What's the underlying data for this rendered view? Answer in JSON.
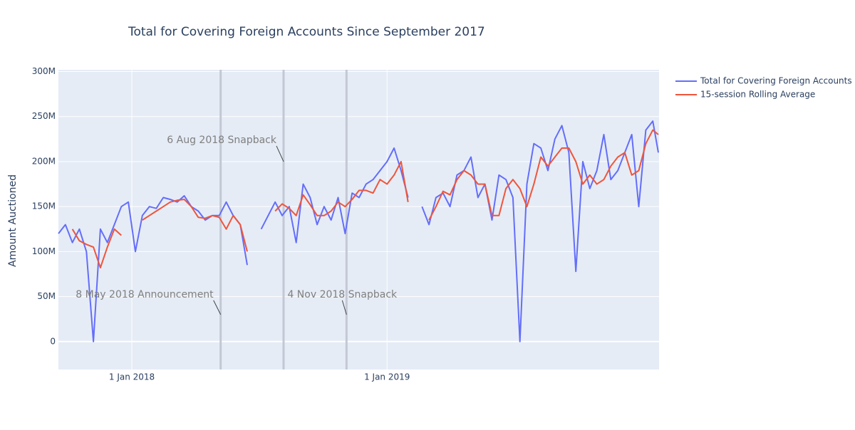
{
  "chart_data": {
    "type": "line",
    "title": "Total for Covering Foreign Accounts Since September 2017",
    "y_label": "Amount Auctioned",
    "x": [
      "2017-09-18",
      "2017-09-28",
      "2017-10-08",
      "2017-10-18",
      "2017-10-28",
      "2017-11-07",
      "2017-11-17",
      "2017-11-27",
      "2017-12-07",
      "2017-12-17",
      "2017-12-27",
      "2018-01-06",
      "2018-01-16",
      "2018-01-26",
      "2018-02-05",
      "2018-02-15",
      "2018-02-25",
      "2018-03-07",
      "2018-03-17",
      "2018-03-27",
      "2018-04-06",
      "2018-04-16",
      "2018-04-26",
      "2018-05-06",
      "2018-05-16",
      "2018-05-26",
      "2018-06-05",
      "2018-06-15",
      "2018-06-25",
      "2018-07-05",
      "2018-07-15",
      "2018-07-25",
      "2018-08-04",
      "2018-08-14",
      "2018-08-24",
      "2018-09-03",
      "2018-09-13",
      "2018-09-23",
      "2018-10-03",
      "2018-10-13",
      "2018-10-23",
      "2018-11-02",
      "2018-11-12",
      "2018-11-22",
      "2018-12-02",
      "2018-12-12",
      "2018-12-22",
      "2019-01-01",
      "2019-01-11",
      "2019-01-21",
      "2019-01-31",
      "2019-02-10",
      "2019-02-20",
      "2019-03-02",
      "2019-03-12",
      "2019-03-22",
      "2019-04-01",
      "2019-04-11",
      "2019-04-21",
      "2019-05-01",
      "2019-05-11",
      "2019-05-21",
      "2019-05-31",
      "2019-06-10",
      "2019-06-20",
      "2019-06-30",
      "2019-07-10",
      "2019-07-20",
      "2019-07-30",
      "2019-08-09",
      "2019-08-19",
      "2019-08-29",
      "2019-09-08",
      "2019-09-18",
      "2019-09-28",
      "2019-10-08",
      "2019-10-18",
      "2019-10-28",
      "2019-11-07",
      "2019-11-17",
      "2019-11-27",
      "2019-12-07",
      "2019-12-17",
      "2019-12-27",
      "2020-01-06",
      "2020-01-16",
      "2020-01-24"
    ],
    "series": [
      {
        "name": "Total for Covering Foreign Accounts",
        "color": "#636efa",
        "values": [
          120000000,
          130000000,
          110000000,
          125000000,
          100000000,
          0,
          125000000,
          110000000,
          130000000,
          150000000,
          155000000,
          100000000,
          140000000,
          150000000,
          148000000,
          160000000,
          158000000,
          155000000,
          162000000,
          150000000,
          145000000,
          135000000,
          140000000,
          140000000,
          155000000,
          140000000,
          130000000,
          85000000,
          null,
          125000000,
          140000000,
          155000000,
          140000000,
          150000000,
          110000000,
          175000000,
          160000000,
          130000000,
          150000000,
          135000000,
          160000000,
          120000000,
          165000000,
          160000000,
          175000000,
          180000000,
          190000000,
          200000000,
          215000000,
          190000000,
          160000000,
          null,
          150000000,
          130000000,
          160000000,
          165000000,
          150000000,
          185000000,
          190000000,
          205000000,
          160000000,
          175000000,
          135000000,
          185000000,
          180000000,
          160000000,
          0,
          175000000,
          220000000,
          215000000,
          190000000,
          225000000,
          240000000,
          210000000,
          78000000,
          200000000,
          170000000,
          190000000,
          230000000,
          180000000,
          190000000,
          210000000,
          230000000,
          150000000,
          235000000,
          245000000,
          210000000
        ]
      },
      {
        "name": "15-session Rolling Average",
        "color": "#ef553b",
        "values": [
          null,
          null,
          125000000,
          112000000,
          108000000,
          105000000,
          82000000,
          105000000,
          125000000,
          118000000,
          null,
          null,
          135000000,
          140000000,
          145000000,
          150000000,
          155000000,
          157000000,
          158000000,
          150000000,
          138000000,
          137000000,
          140000000,
          138000000,
          125000000,
          140000000,
          130000000,
          100000000,
          null,
          null,
          null,
          145000000,
          153000000,
          148000000,
          140000000,
          163000000,
          152000000,
          140000000,
          140000000,
          145000000,
          155000000,
          150000000,
          158000000,
          168000000,
          168000000,
          165000000,
          180000000,
          175000000,
          185000000,
          200000000,
          155000000,
          null,
          null,
          135000000,
          150000000,
          167000000,
          163000000,
          180000000,
          190000000,
          185000000,
          175000000,
          175000000,
          140000000,
          140000000,
          170000000,
          180000000,
          170000000,
          150000000,
          175000000,
          205000000,
          195000000,
          205000000,
          215000000,
          215000000,
          200000000,
          175000000,
          185000000,
          175000000,
          180000000,
          195000000,
          205000000,
          210000000,
          185000000,
          190000000,
          220000000,
          235000000,
          230000000
        ]
      }
    ],
    "xlim": [
      "2017-09-18",
      "2020-01-25"
    ],
    "xticks": [
      {
        "value": "2018-01-01",
        "label": "1 Jan 2018"
      },
      {
        "value": "2019-01-01",
        "label": "1 Jan 2019"
      }
    ],
    "ylim": [
      -31000000,
      302000000
    ],
    "yticks": [
      0,
      {
        "value": 50000000,
        "label": "50M"
      },
      {
        "value": 100000000,
        "label": "100M"
      },
      {
        "value": 150000000,
        "label": "150M"
      },
      {
        "value": 200000000,
        "label": "200M"
      },
      {
        "value": 250000000,
        "label": "250M"
      },
      {
        "value": 300000000,
        "label": "300M"
      }
    ],
    "grid": true,
    "legend": "top-right",
    "annotations": [
      {
        "text": "8 May 2018 Announcement",
        "x": "2018-05-08",
        "y": 30000000
      },
      {
        "text": "6 Aug 2018 Snapback",
        "x": "2018-08-06",
        "y": 200000000
      },
      {
        "text": "4 Nov 2018 Snapback",
        "x": "2018-11-04",
        "y": 30000000
      }
    ]
  }
}
